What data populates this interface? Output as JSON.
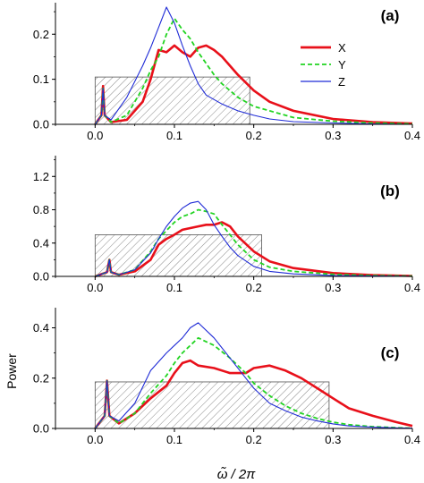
{
  "figure": {
    "ylabel": "Power",
    "xlabel": "ω̃ / 2π"
  },
  "legend": {
    "items": [
      {
        "label": "X",
        "color": "#e8101a",
        "style": "solid-thick"
      },
      {
        "label": "Y",
        "color": "#22d422",
        "style": "dashed"
      },
      {
        "label": "Z",
        "color": "#1f2bd6",
        "style": "solid-thin"
      }
    ]
  },
  "chart_data": [
    {
      "type": "line",
      "panel_label": "(a)",
      "xlim": [
        -0.05,
        0.4
      ],
      "ylim": [
        0,
        0.27
      ],
      "x_ticks": [
        "0.0",
        "0.1",
        "0.2",
        "0.3",
        "0.4"
      ],
      "y_ticks": [
        "0.0",
        "0.1",
        "0.2"
      ],
      "shaded_band": {
        "x0": 0.0,
        "x1": 0.195,
        "height": 0.105
      },
      "series": [
        {
          "name": "X",
          "color": "#e8101a",
          "x": [
            0.0,
            0.008,
            0.01,
            0.012,
            0.02,
            0.04,
            0.06,
            0.07,
            0.08,
            0.09,
            0.1,
            0.11,
            0.12,
            0.13,
            0.14,
            0.15,
            0.16,
            0.18,
            0.2,
            0.22,
            0.25,
            0.3,
            0.35,
            0.4
          ],
          "y": [
            0.0,
            0.02,
            0.085,
            0.02,
            0.005,
            0.01,
            0.05,
            0.1,
            0.165,
            0.16,
            0.175,
            0.16,
            0.15,
            0.17,
            0.175,
            0.165,
            0.15,
            0.11,
            0.075,
            0.05,
            0.03,
            0.012,
            0.005,
            0.002
          ]
        },
        {
          "name": "Y",
          "color": "#22d422",
          "x": [
            0.0,
            0.008,
            0.01,
            0.012,
            0.02,
            0.04,
            0.06,
            0.07,
            0.08,
            0.09,
            0.1,
            0.11,
            0.12,
            0.13,
            0.14,
            0.15,
            0.16,
            0.18,
            0.2,
            0.22,
            0.25,
            0.3,
            0.35,
            0.4
          ],
          "y": [
            0.0,
            0.02,
            0.08,
            0.02,
            0.005,
            0.02,
            0.08,
            0.12,
            0.15,
            0.2,
            0.235,
            0.21,
            0.19,
            0.16,
            0.135,
            0.11,
            0.09,
            0.06,
            0.04,
            0.03,
            0.015,
            0.007,
            0.003,
            0.001
          ]
        },
        {
          "name": "Z",
          "color": "#1f2bd6",
          "x": [
            0.0,
            0.008,
            0.01,
            0.012,
            0.02,
            0.04,
            0.06,
            0.07,
            0.08,
            0.09,
            0.1,
            0.11,
            0.12,
            0.13,
            0.14,
            0.15,
            0.16,
            0.18,
            0.2,
            0.22,
            0.25,
            0.3,
            0.35,
            0.4
          ],
          "y": [
            0.0,
            0.02,
            0.08,
            0.02,
            0.01,
            0.06,
            0.13,
            0.17,
            0.215,
            0.26,
            0.225,
            0.175,
            0.13,
            0.09,
            0.065,
            0.055,
            0.045,
            0.03,
            0.02,
            0.012,
            0.006,
            0.003,
            0.001,
            0.0
          ]
        }
      ]
    },
    {
      "type": "line",
      "panel_label": "(b)",
      "xlim": [
        -0.05,
        0.4
      ],
      "ylim": [
        0,
        1.45
      ],
      "x_ticks": [
        "0.0",
        "0.1",
        "0.2",
        "0.3",
        "0.4"
      ],
      "y_ticks": [
        "0.0",
        "0.4",
        "0.8",
        "1.2"
      ],
      "shaded_band": {
        "x0": 0.0,
        "x1": 0.21,
        "height": 0.5
      },
      "series": [
        {
          "name": "X",
          "color": "#e8101a",
          "x": [
            0.0,
            0.015,
            0.018,
            0.02,
            0.03,
            0.05,
            0.07,
            0.08,
            0.09,
            0.1,
            0.11,
            0.12,
            0.13,
            0.14,
            0.15,
            0.16,
            0.17,
            0.18,
            0.2,
            0.22,
            0.25,
            0.3,
            0.35,
            0.4
          ],
          "y": [
            0.0,
            0.05,
            0.2,
            0.05,
            0.02,
            0.06,
            0.2,
            0.38,
            0.45,
            0.5,
            0.56,
            0.58,
            0.6,
            0.62,
            0.62,
            0.65,
            0.6,
            0.48,
            0.3,
            0.18,
            0.1,
            0.04,
            0.015,
            0.005
          ]
        },
        {
          "name": "Y",
          "color": "#22d422",
          "x": [
            0.0,
            0.015,
            0.018,
            0.02,
            0.03,
            0.05,
            0.07,
            0.08,
            0.09,
            0.1,
            0.11,
            0.12,
            0.13,
            0.14,
            0.15,
            0.16,
            0.17,
            0.18,
            0.2,
            0.22,
            0.25,
            0.3,
            0.35,
            0.4
          ],
          "y": [
            0.0,
            0.05,
            0.2,
            0.05,
            0.02,
            0.08,
            0.3,
            0.45,
            0.55,
            0.65,
            0.72,
            0.75,
            0.8,
            0.78,
            0.75,
            0.62,
            0.5,
            0.38,
            0.2,
            0.11,
            0.06,
            0.025,
            0.01,
            0.003
          ]
        },
        {
          "name": "Z",
          "color": "#1f2bd6",
          "x": [
            0.0,
            0.015,
            0.018,
            0.02,
            0.03,
            0.05,
            0.07,
            0.08,
            0.09,
            0.1,
            0.11,
            0.12,
            0.13,
            0.14,
            0.15,
            0.16,
            0.17,
            0.18,
            0.2,
            0.22,
            0.25,
            0.3,
            0.35,
            0.4
          ],
          "y": [
            0.0,
            0.05,
            0.2,
            0.05,
            0.02,
            0.08,
            0.28,
            0.45,
            0.6,
            0.72,
            0.82,
            0.88,
            0.9,
            0.8,
            0.62,
            0.48,
            0.35,
            0.25,
            0.12,
            0.06,
            0.03,
            0.01,
            0.004,
            0.001
          ]
        }
      ]
    },
    {
      "type": "line",
      "panel_label": "(c)",
      "xlim": [
        -0.05,
        0.4
      ],
      "ylim": [
        0,
        0.48
      ],
      "x_ticks": [
        "0.0",
        "0.1",
        "0.2",
        "0.3",
        "0.4"
      ],
      "y_ticks": [
        "0.0",
        "0.2",
        "0.4"
      ],
      "shaded_band": {
        "x0": 0.0,
        "x1": 0.295,
        "height": 0.185
      },
      "series": [
        {
          "name": "X",
          "color": "#e8101a",
          "x": [
            0.0,
            0.012,
            0.015,
            0.018,
            0.03,
            0.05,
            0.07,
            0.09,
            0.1,
            0.11,
            0.12,
            0.13,
            0.15,
            0.17,
            0.19,
            0.2,
            0.22,
            0.24,
            0.26,
            0.28,
            0.3,
            0.32,
            0.35,
            0.38,
            0.4
          ],
          "y": [
            0.0,
            0.05,
            0.19,
            0.05,
            0.02,
            0.06,
            0.12,
            0.17,
            0.22,
            0.26,
            0.27,
            0.25,
            0.24,
            0.22,
            0.22,
            0.24,
            0.25,
            0.23,
            0.2,
            0.16,
            0.12,
            0.08,
            0.05,
            0.025,
            0.01
          ]
        },
        {
          "name": "Y",
          "color": "#22d422",
          "x": [
            0.0,
            0.012,
            0.015,
            0.018,
            0.03,
            0.05,
            0.07,
            0.09,
            0.1,
            0.11,
            0.12,
            0.13,
            0.15,
            0.17,
            0.19,
            0.2,
            0.22,
            0.24,
            0.26,
            0.28,
            0.3,
            0.32,
            0.35,
            0.38,
            0.4
          ],
          "y": [
            0.0,
            0.05,
            0.19,
            0.05,
            0.02,
            0.06,
            0.14,
            0.21,
            0.26,
            0.3,
            0.33,
            0.36,
            0.33,
            0.28,
            0.22,
            0.18,
            0.13,
            0.09,
            0.06,
            0.04,
            0.025,
            0.015,
            0.007,
            0.003,
            0.001
          ]
        },
        {
          "name": "Z",
          "color": "#1f2bd6",
          "x": [
            0.0,
            0.012,
            0.015,
            0.018,
            0.03,
            0.05,
            0.07,
            0.09,
            0.1,
            0.11,
            0.12,
            0.13,
            0.15,
            0.17,
            0.19,
            0.2,
            0.22,
            0.24,
            0.26,
            0.28,
            0.3,
            0.32,
            0.35,
            0.38,
            0.4
          ],
          "y": [
            0.0,
            0.05,
            0.19,
            0.05,
            0.03,
            0.1,
            0.23,
            0.3,
            0.33,
            0.36,
            0.4,
            0.42,
            0.36,
            0.28,
            0.2,
            0.16,
            0.1,
            0.07,
            0.045,
            0.03,
            0.018,
            0.01,
            0.005,
            0.002,
            0.001
          ]
        }
      ]
    }
  ]
}
